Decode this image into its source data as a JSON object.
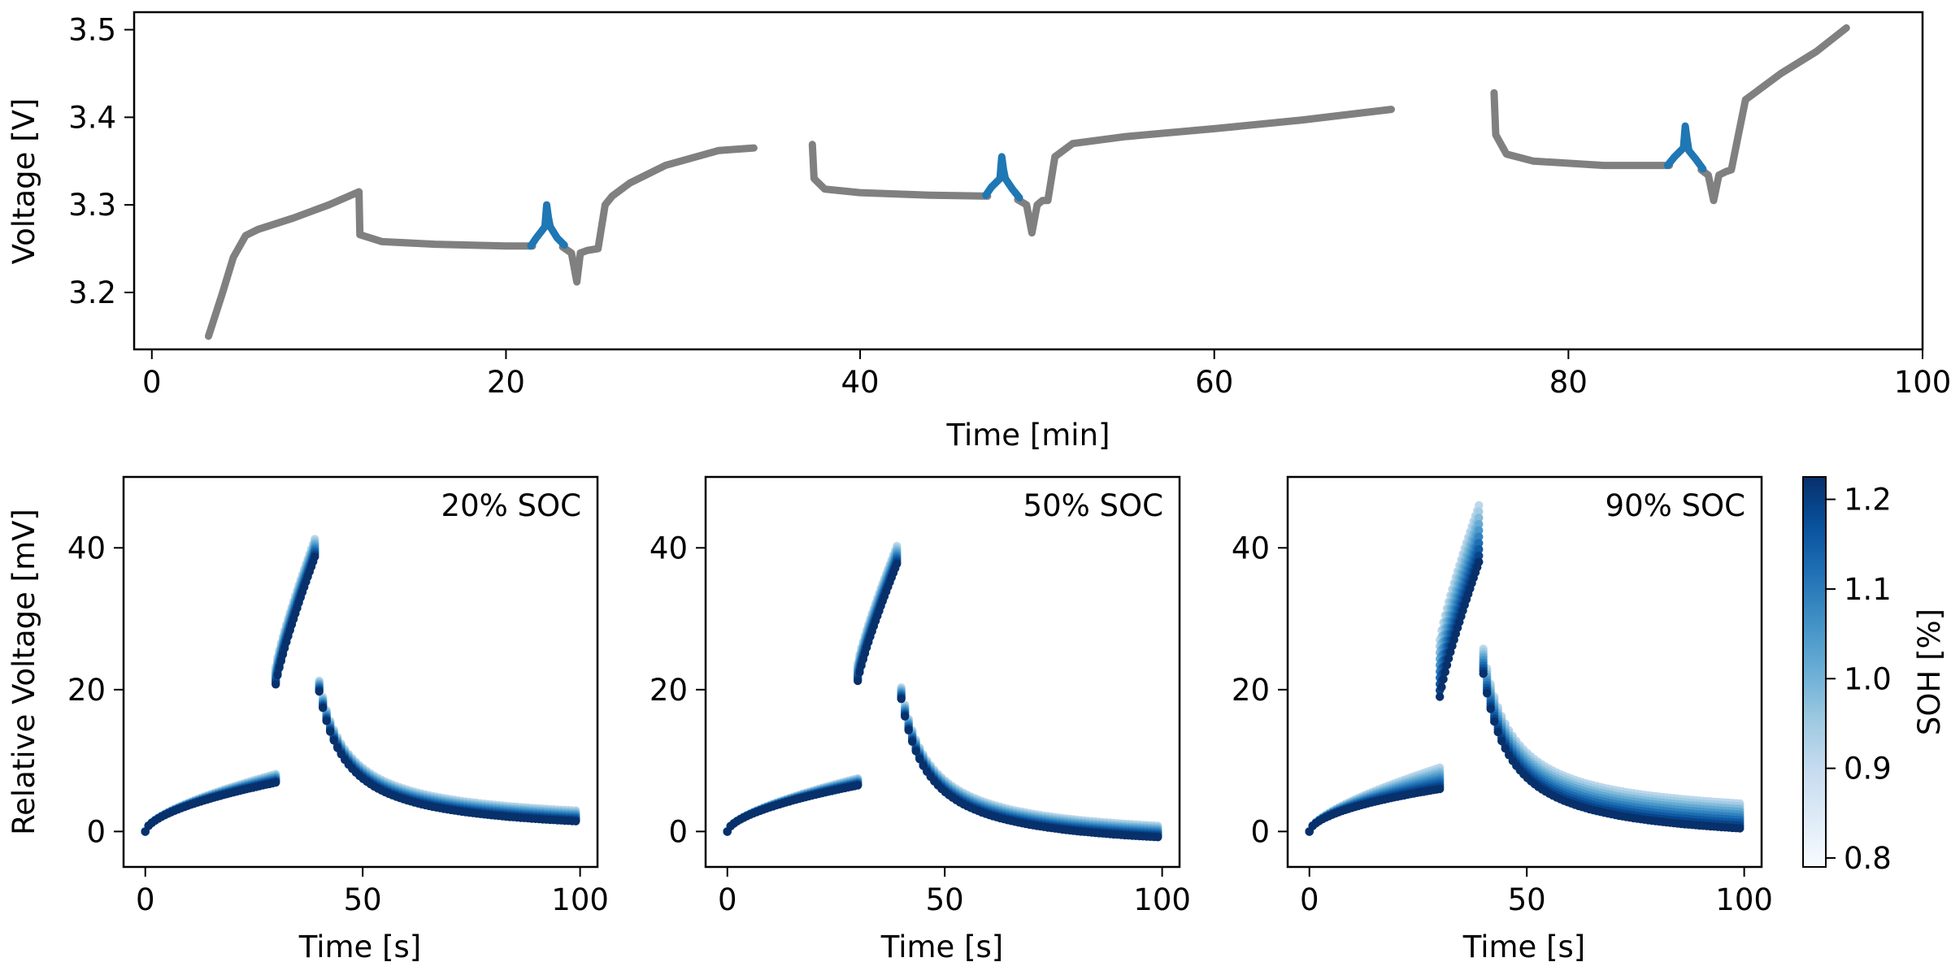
{
  "chart_data": [
    {
      "type": "line",
      "xlabel": "Time [min]",
      "ylabel": "Voltage [V]",
      "xlim": [
        -1,
        100
      ],
      "ylim": [
        3.135,
        3.52
      ],
      "xticks": [
        0,
        20,
        40,
        60,
        80,
        100
      ],
      "yticks": [
        3.2,
        3.3,
        3.4,
        3.5
      ],
      "ytick_labels": [
        "3.2",
        "3.3",
        "3.4",
        "3.5"
      ],
      "grid": false,
      "series": [
        {
          "style": "base",
          "color": "#808080",
          "x": [
            3.2,
            4.0,
            4.6,
            5.3,
            6.0,
            8.0,
            10.0,
            11.7,
            11.75,
            13.0,
            16.0,
            20.0,
            21.5
          ],
          "y": [
            3.15,
            3.2,
            3.24,
            3.265,
            3.272,
            3.285,
            3.3,
            3.315,
            3.266,
            3.258,
            3.255,
            3.253,
            3.253
          ]
        },
        {
          "style": "base",
          "color": "#808080",
          "x": [
            23.2,
            23.7,
            24.0,
            24.2,
            24.6,
            25.2,
            25.6,
            26.0,
            27.0,
            29.0,
            32.0,
            34.0,
            37.3,
            37.4,
            38.0,
            40.0,
            44.0,
            47.2
          ],
          "y": [
            3.252,
            3.245,
            3.212,
            3.245,
            3.248,
            3.25,
            3.3,
            3.31,
            3.325,
            3.345,
            3.362,
            3.365,
            3.369,
            3.33,
            3.318,
            3.314,
            3.311,
            3.31
          ],
          "gap_after": 11
        },
        {
          "style": "base",
          "color": "#808080",
          "x": [
            48.9,
            49.4,
            49.7,
            50.0,
            50.3,
            50.6,
            51.0,
            52.0,
            55.0,
            60.0,
            65.0,
            70.0,
            75.8,
            75.9,
            76.5,
            78.0,
            82.0,
            85.7
          ],
          "y": [
            3.306,
            3.3,
            3.268,
            3.3,
            3.305,
            3.305,
            3.355,
            3.37,
            3.378,
            3.387,
            3.397,
            3.409,
            3.428,
            3.38,
            3.358,
            3.35,
            3.345,
            3.345
          ],
          "gap_after": 11
        },
        {
          "style": "base",
          "color": "#808080",
          "x": [
            87.5,
            87.9,
            88.2,
            88.5,
            88.9,
            89.2,
            89.5,
            90.0,
            92.0,
            94.0,
            95.7
          ],
          "y": [
            3.34,
            3.334,
            3.305,
            3.334,
            3.338,
            3.34,
            3.37,
            3.42,
            3.45,
            3.475,
            3.502
          ]
        },
        {
          "style": "pulse",
          "color": "#1f77b4",
          "x": [
            21.4,
            21.7,
            22.2,
            22.3,
            22.4,
            22.5,
            22.9,
            23.3
          ],
          "y": [
            3.253,
            3.262,
            3.275,
            3.3,
            3.285,
            3.275,
            3.262,
            3.254
          ]
        },
        {
          "style": "pulse",
          "color": "#1f77b4",
          "x": [
            47.1,
            47.4,
            47.9,
            48.0,
            48.1,
            48.2,
            48.6,
            49.0
          ],
          "y": [
            3.311,
            3.32,
            3.33,
            3.355,
            3.34,
            3.33,
            3.318,
            3.308
          ]
        },
        {
          "style": "pulse",
          "color": "#1f77b4",
          "x": [
            85.6,
            86.0,
            86.5,
            86.6,
            86.7,
            86.8,
            87.2,
            87.6
          ],
          "y": [
            3.345,
            3.355,
            3.365,
            3.39,
            3.375,
            3.362,
            3.352,
            3.341
          ]
        }
      ]
    },
    {
      "type": "scatter",
      "annotation": "20% SOC",
      "xlabel": "Time [s]",
      "ylabel": "Relative Voltage [mV]",
      "xlim": [
        -5,
        104
      ],
      "ylim": [
        -5,
        50
      ],
      "xticks": [
        0,
        50,
        100
      ],
      "yticks": [
        0,
        20,
        40
      ],
      "grid": false,
      "curves": {
        "charge": {
          "t_start": 0,
          "t_end": 30,
          "start": 0,
          "end": 7.5,
          "spread": 1.2
        },
        "pulse": {
          "t_start": 30,
          "t_end": 39,
          "start": 22.0,
          "end": 40.0,
          "spread": 2.5
        },
        "relax": {
          "t_start": 40,
          "t_end": 99,
          "start": 20.5,
          "end": 2.2,
          "spread": 1.5
        }
      },
      "darker_when_higher": false
    },
    {
      "type": "scatter",
      "annotation": "50% SOC",
      "xlabel": "Time [s]",
      "ylabel": "",
      "xlim": [
        -5,
        104
      ],
      "ylim": [
        -5,
        50
      ],
      "xticks": [
        0,
        50,
        100
      ],
      "yticks": [
        0,
        20,
        40
      ],
      "grid": false,
      "curves": {
        "charge": {
          "t_start": 0,
          "t_end": 30,
          "start": 0,
          "end": 7.0,
          "spread": 1.0
        },
        "pulse": {
          "t_start": 30,
          "t_end": 39,
          "start": 22.5,
          "end": 39.0,
          "spread": 2.5
        },
        "relax": {
          "t_start": 40,
          "t_end": 99,
          "start": 19.5,
          "end": 0.0,
          "spread": 1.6
        }
      },
      "darker_when_higher": false
    },
    {
      "type": "scatter",
      "annotation": "90% SOC",
      "xlabel": "Time [s]",
      "ylabel": "",
      "xlim": [
        -5,
        104
      ],
      "ylim": [
        -5,
        50
      ],
      "xticks": [
        0,
        50,
        100
      ],
      "yticks": [
        0,
        20,
        40
      ],
      "grid": false,
      "curves": {
        "charge": {
          "t_start": 0,
          "t_end": 30,
          "start": 0,
          "end": 7.5,
          "spread": 3.0
        },
        "pulse": {
          "t_start": 30,
          "t_end": 39,
          "start": 23.0,
          "end": 42.0,
          "spread": 8.0
        },
        "relax": {
          "t_start": 40,
          "t_end": 99,
          "start": 24.0,
          "end": 2.2,
          "spread": 3.5
        }
      },
      "darker_when_higher": false
    }
  ],
  "colorbar": {
    "label": "SOH [%]",
    "range": [
      0.79,
      1.225
    ],
    "ticks": [
      0.8,
      0.9,
      1.0,
      1.1,
      1.2
    ],
    "colormap": "Blues",
    "light_color": "#f7fbff",
    "dark_color": "#08306b"
  }
}
